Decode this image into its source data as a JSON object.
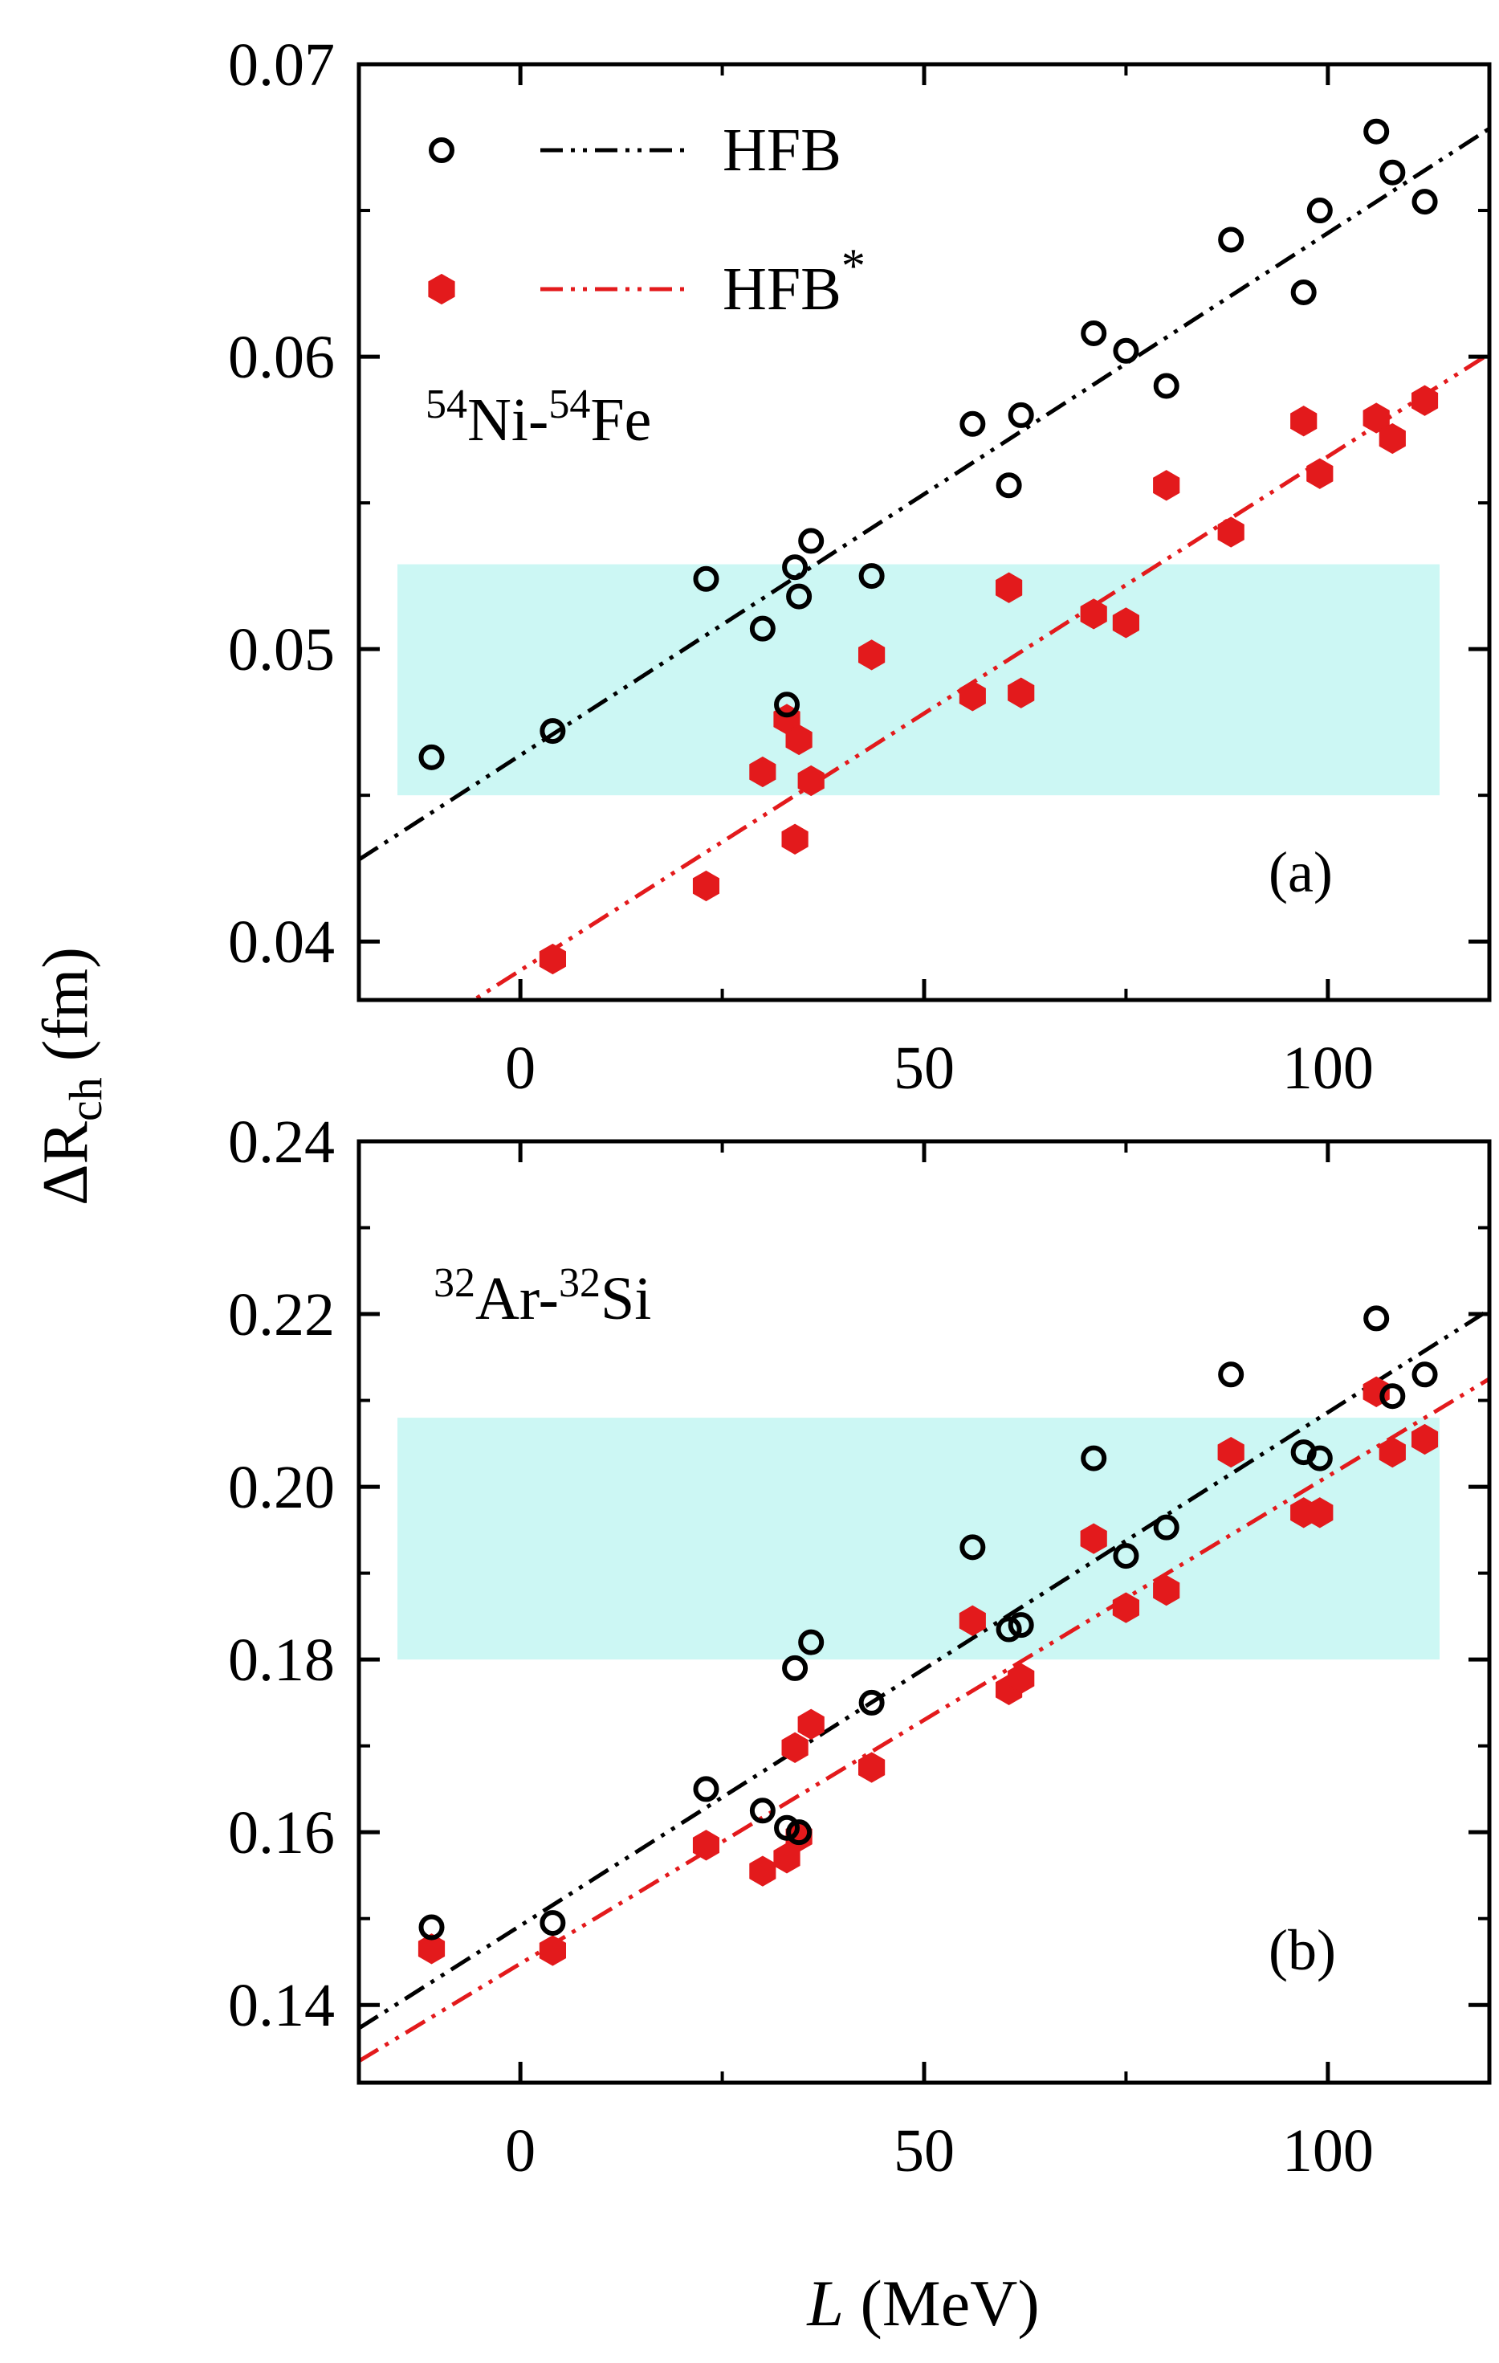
{
  "figure": {
    "ylabel": "ΔR",
    "ylabel_sub": "ch",
    "ylabel_unit": " (fm)",
    "xlabel_italic": "L",
    "xlabel_unit": " (MeV)"
  },
  "legend": {
    "entries": [
      {
        "label": "HFB",
        "sup": "",
        "marker": "open-circle",
        "line": "dash-dot-dot",
        "color": "#000000"
      },
      {
        "label": "HFB",
        "sup": "*",
        "marker": "filled-hexagon",
        "line": "dash-dot-dot",
        "color": "#e31a1c"
      }
    ]
  },
  "colors": {
    "hfb": "#000000",
    "hfb_star": "#e31a1c",
    "band": "#ccf7f4",
    "axis": "#000000"
  },
  "chart_data": [
    {
      "type": "scatter",
      "panel_label": "(a)",
      "annotation": {
        "a1": "54",
        "e1": "Ni-",
        "a2": "54",
        "e2": "Fe"
      },
      "xlim": [
        -20,
        120
      ],
      "ylim": [
        0.038,
        0.07
      ],
      "xticks": [
        0,
        50,
        100
      ],
      "xtick_labels": [
        "0",
        "50",
        "100"
      ],
      "yticks": [
        0.04,
        0.05,
        0.06,
        0.07
      ],
      "ytick_labels": [
        "0.04",
        "0.05",
        "0.06",
        "0.07"
      ],
      "band": [
        0.045,
        0.0529
      ],
      "series": [
        {
          "name": "HFB",
          "marker": "open-circle",
          "points": [
            [
              -11,
              0.0463
            ],
            [
              4,
              0.0472
            ],
            [
              23,
              0.0524
            ],
            [
              30,
              0.0507
            ],
            [
              33,
              0.0481
            ],
            [
              34,
              0.0528
            ],
            [
              34.5,
              0.0518
            ],
            [
              36,
              0.0537
            ],
            [
              43.5,
              0.0525
            ],
            [
              56,
              0.0577
            ],
            [
              60.5,
              0.0556
            ],
            [
              62,
              0.058
            ],
            [
              71,
              0.0608
            ],
            [
              75,
              0.0602
            ],
            [
              80,
              0.059
            ],
            [
              88,
              0.064
            ],
            [
              97,
              0.0622
            ],
            [
              99,
              0.065
            ],
            [
              106,
              0.0677
            ],
            [
              108,
              0.0663
            ],
            [
              112,
              0.0653
            ]
          ],
          "fit": {
            "x": [
              -20,
              120
            ],
            "y": [
              0.0428,
              0.0678
            ]
          }
        },
        {
          "name": "HFB*",
          "marker": "filled-hexagon",
          "points": [
            [
              4,
              0.0394
            ],
            [
              23,
              0.0419
            ],
            [
              30,
              0.0458
            ],
            [
              33,
              0.0476
            ],
            [
              34,
              0.0435
            ],
            [
              34.5,
              0.0469
            ],
            [
              36,
              0.0455
            ],
            [
              43.5,
              0.0498
            ],
            [
              56,
              0.0484
            ],
            [
              60.5,
              0.0521
            ],
            [
              62,
              0.0485
            ],
            [
              71,
              0.0512
            ],
            [
              75,
              0.0509
            ],
            [
              80,
              0.0556
            ],
            [
              88,
              0.054
            ],
            [
              97,
              0.0578
            ],
            [
              99,
              0.056
            ],
            [
              106,
              0.0579
            ],
            [
              108,
              0.0572
            ],
            [
              112,
              0.0585
            ]
          ],
          "fit": {
            "x": [
              -20,
              120
            ],
            "y": [
              0.0355,
              0.0601
            ]
          }
        }
      ]
    },
    {
      "type": "scatter",
      "panel_label": "(b)",
      "annotation": {
        "a1": "32",
        "e1": "Ar-",
        "a2": "32",
        "e2": "Si"
      },
      "xlim": [
        -20,
        120
      ],
      "ylim": [
        0.131,
        0.24
      ],
      "xticks": [
        0,
        50,
        100
      ],
      "xtick_labels": [
        "0",
        "50",
        "100"
      ],
      "yticks": [
        0.14,
        0.16,
        0.18,
        0.2,
        0.22,
        0.24
      ],
      "ytick_labels": [
        "0.14",
        "0.16",
        "0.18",
        "0.20",
        "0.22",
        "0.24"
      ],
      "band": [
        0.18,
        0.208
      ],
      "series": [
        {
          "name": "HFB",
          "marker": "open-circle",
          "points": [
            [
              -11,
              0.149
            ],
            [
              4,
              0.1495
            ],
            [
              23,
              0.165
            ],
            [
              30,
              0.1625
            ],
            [
              33,
              0.1605
            ],
            [
              34,
              0.179
            ],
            [
              34.5,
              0.16
            ],
            [
              36,
              0.182
            ],
            [
              43.5,
              0.175
            ],
            [
              56,
              0.193
            ],
            [
              60.5,
              0.1835
            ],
            [
              62,
              0.184
            ],
            [
              71,
              0.2033
            ],
            [
              75,
              0.192
            ],
            [
              80,
              0.1953
            ],
            [
              88,
              0.213
            ],
            [
              97,
              0.204
            ],
            [
              99,
              0.2033
            ],
            [
              106,
              0.2195
            ],
            [
              108,
              0.2105
            ],
            [
              112,
              0.213
            ]
          ],
          "fit": {
            "x": [
              -20,
              120
            ],
            "y": [
              0.1373,
              0.2205
            ]
          }
        },
        {
          "name": "HFB*",
          "marker": "filled-hexagon",
          "points": [
            [
              -11,
              0.1465
            ],
            [
              4,
              0.1463
            ],
            [
              23,
              0.1585
            ],
            [
              30,
              0.1555
            ],
            [
              33,
              0.157
            ],
            [
              34,
              0.1698
            ],
            [
              34.5,
              0.1595
            ],
            [
              36,
              0.1725
            ],
            [
              43.5,
              0.1675
            ],
            [
              56,
              0.1845
            ],
            [
              60.5,
              0.1765
            ],
            [
              62,
              0.1778
            ],
            [
              71,
              0.194
            ],
            [
              75,
              0.186
            ],
            [
              80,
              0.188
            ],
            [
              88,
              0.204
            ],
            [
              97,
              0.197
            ],
            [
              99,
              0.197
            ],
            [
              106,
              0.211
            ],
            [
              108,
              0.204
            ],
            [
              112,
              0.2055
            ]
          ],
          "fit": {
            "x": [
              -20,
              120
            ],
            "y": [
              0.1335,
              0.2125
            ]
          }
        }
      ]
    }
  ]
}
